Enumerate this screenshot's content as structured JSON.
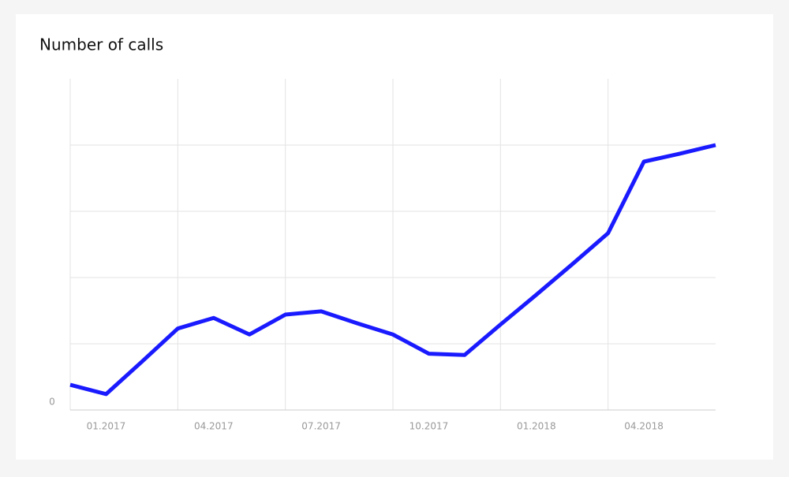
{
  "chart_data": {
    "type": "line",
    "title": "Number of calls",
    "x": [
      "2016-12",
      "2017-01",
      "2017-02",
      "2017-03",
      "2017-04",
      "2017-05",
      "2017-06",
      "2017-07",
      "2017-08",
      "2017-09",
      "2017-10",
      "2017-11",
      "2017-12",
      "2018-01",
      "2018-02",
      "2018-03",
      "2018-04",
      "2018-05",
      "2018-06"
    ],
    "series": [
      {
        "color": "#1a1aff",
        "values": [
          0.38,
          0.24,
          0.73,
          1.23,
          1.39,
          1.14,
          1.44,
          1.49,
          1.31,
          1.14,
          0.85,
          0.83,
          1.29,
          1.74,
          2.2,
          2.67,
          3.75,
          3.87,
          4.0
        ]
      }
    ],
    "xlim": [
      "2016-12",
      "2018-06"
    ],
    "xticks": [
      {
        "value": "2017-01",
        "label": "01.2017"
      },
      {
        "value": "2017-04",
        "label": "04.2017"
      },
      {
        "value": "2017-07",
        "label": "07.2017"
      },
      {
        "value": "2017-10",
        "label": "10.2017"
      },
      {
        "value": "2018-01",
        "label": "01.2018"
      },
      {
        "value": "2018-04",
        "label": "04.2018"
      }
    ],
    "xgrid": [
      "2017-03",
      "2017-06",
      "2017-09",
      "2017-12",
      "2018-03"
    ],
    "ylim": [
      0,
      5
    ],
    "yticks": [
      0
    ],
    "ygrid": [
      1,
      2,
      3,
      4
    ],
    "grid": true
  }
}
